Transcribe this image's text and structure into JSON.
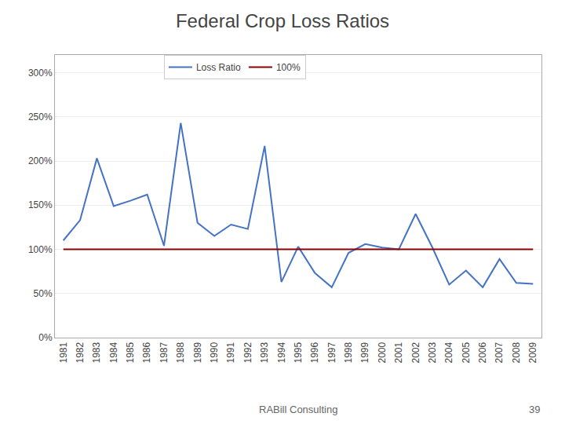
{
  "chart_data": {
    "type": "line",
    "title": "Federal Crop Loss Ratios",
    "x": [
      1981,
      1982,
      1983,
      1984,
      1985,
      1986,
      1987,
      1988,
      1989,
      1990,
      1991,
      1992,
      1993,
      1994,
      1995,
      1996,
      1997,
      1998,
      1999,
      2000,
      2001,
      2002,
      2003,
      2004,
      2005,
      2006,
      2007,
      2008,
      2009
    ],
    "series": [
      {
        "name": "Loss Ratio",
        "color": "#4472C4",
        "values": [
          1.1,
          1.33,
          2.03,
          1.49,
          1.55,
          1.62,
          1.04,
          2.43,
          1.3,
          1.15,
          1.28,
          1.23,
          2.17,
          0.63,
          1.03,
          0.73,
          0.57,
          0.96,
          1.06,
          1.02,
          1.0,
          1.4,
          1.02,
          0.6,
          0.76,
          0.57,
          0.89,
          0.62,
          0.61
        ]
      },
      {
        "name": "100%",
        "color": "#8B0000",
        "values": [
          1.0,
          1.0,
          1.0,
          1.0,
          1.0,
          1.0,
          1.0,
          1.0,
          1.0,
          1.0,
          1.0,
          1.0,
          1.0,
          1.0,
          1.0,
          1.0,
          1.0,
          1.0,
          1.0,
          1.0,
          1.0,
          1.0,
          1.0,
          1.0,
          1.0,
          1.0,
          1.0,
          1.0,
          1.0
        ]
      }
    ],
    "xlim": [
      1980.5,
      2009.5
    ],
    "xticks": [
      1981,
      1982,
      1983,
      1984,
      1985,
      1986,
      1987,
      1988,
      1989,
      1990,
      1991,
      1992,
      1993,
      1994,
      1995,
      1996,
      1997,
      1998,
      1999,
      2000,
      2001,
      2002,
      2003,
      2004,
      2005,
      2006,
      2007,
      2008,
      2009
    ],
    "ylim": [
      0.0,
      3.2
    ],
    "yticks": [
      {
        "value": 0.0,
        "label": "0%"
      },
      {
        "value": 0.5,
        "label": "50%"
      },
      {
        "value": 1.0,
        "label": "100%"
      },
      {
        "value": 1.5,
        "label": "150%"
      },
      {
        "value": 2.0,
        "label": "200%"
      },
      {
        "value": 2.5,
        "label": "250%"
      },
      {
        "value": 3.0,
        "label": "300%"
      }
    ],
    "grid": "y",
    "legend": "top",
    "annotations": [
      "RABill Consulting",
      "39"
    ]
  }
}
